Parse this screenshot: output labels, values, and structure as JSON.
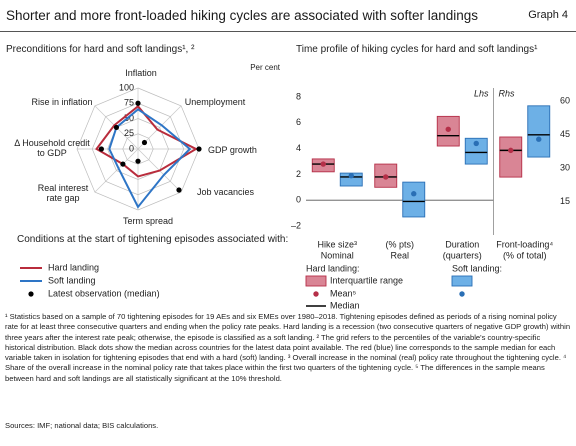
{
  "header": {
    "title": "Shorter and more front-loaded hiking cycles are associated with softer landings",
    "graph_label": "Graph 4"
  },
  "chart_data": [
    {
      "type": "radar",
      "title": "Preconditions for hard and soft landings¹, ²",
      "unit_label": "Per cent",
      "categories": [
        "Inflation",
        "Unemployment",
        "GDP growth",
        "Job vacancies",
        "Term spread",
        "Real interest rate gap",
        "Δ Household credit to GDP",
        "Rise in inflation"
      ],
      "ylim": [
        0,
        100
      ],
      "yticks": [
        0,
        25,
        50,
        75,
        100
      ],
      "grid": true,
      "legend_title": "Conditions at the start of tightening episodes associated with:",
      "series": [
        {
          "name": "Hard landing",
          "color": "#b92c3c",
          "marker": "line",
          "values": [
            70,
            45,
            95,
            50,
            45,
            35,
            68,
            55
          ]
        },
        {
          "name": "Soft landing",
          "color": "#2e75c6",
          "marker": "line",
          "values": [
            65,
            55,
            85,
            60,
            95,
            45,
            47,
            50
          ]
        },
        {
          "name": "Latest observation (median)",
          "color": "#000000",
          "marker": "dot",
          "values": [
            75,
            15,
            100,
            95,
            20,
            35,
            60,
            50
          ]
        }
      ]
    },
    {
      "type": "box",
      "title": "Time profile of hiking cycles for hard and soft landings¹",
      "categories": [
        "Hike size³",
        "(% pts)",
        "Duration",
        "Front-loading⁴"
      ],
      "category_sublabels": [
        "Nominal",
        "Real",
        "(quarters)",
        "(% of total)"
      ],
      "category_axes": [
        "y",
        "y",
        "y",
        "y2"
      ],
      "ylabel": "Lhs",
      "y2label": "Rhs",
      "ylim": [
        -2.7,
        8.7
      ],
      "yticks": [
        {
          "value": -2,
          "label": "–2"
        },
        0,
        2,
        4,
        6,
        8
      ],
      "y2lim": [
        0,
        66
      ],
      "y2ticks": [
        15,
        30,
        45,
        60
      ],
      "legend": {
        "range": "Interquartile range",
        "mean": "Mean⁵",
        "median": "Median"
      },
      "series": [
        {
          "name": "Hard landing:",
          "color": "#b52f48",
          "fill": "#d98595",
          "q1": [
            2.2,
            1.0,
            4.2,
            26
          ],
          "q3": [
            3.2,
            2.8,
            6.5,
            44
          ],
          "median": [
            2.8,
            1.8,
            5.0,
            38
          ],
          "mean": [
            2.8,
            1.8,
            5.5,
            38
          ]
        },
        {
          "name": "Soft landing:",
          "color": "#2a6fb5",
          "fill": "#6db0e6",
          "q1": [
            1.1,
            -1.3,
            2.8,
            35
          ],
          "q3": [
            2.1,
            1.4,
            4.8,
            58
          ],
          "median": [
            1.8,
            -0.1,
            3.7,
            45
          ],
          "mean": [
            1.9,
            0.5,
            4.4,
            43
          ]
        }
      ]
    }
  ],
  "footnotes": "¹ Statistics based on a sample of 70 tightening episodes for 19 AEs and six EMEs over 1980–2018. Tightening episodes defined as periods of a rising nominal policy rate for at least three consecutive quarters and ending when the policy rate peaks. Hard landing is a recession (two consecutive quarters of negative GDP growth) within three years after the interest rate peak; otherwise, the episode is classified as a soft landing.   ² The grid refers to the percentiles of the variable's country-specific historical distribution. Black dots show the median across countries for the latest data point available. The red (blue) line corresponds to the sample median for each variable taken in isolation for tightening episodes that end with a hard (soft) landing.   ³ Overall increase in the nominal (real) policy rate throughout the tightening cycle.   ⁴ Share of the overall increase in the nominal policy rate that takes place within the first two quarters of the tightening cycle.   ⁵ The differences in the sample means between hard and soft landings are all statistically significant at the 10% threshold.",
  "sources": "Sources: IMF; national data; BIS calculations."
}
